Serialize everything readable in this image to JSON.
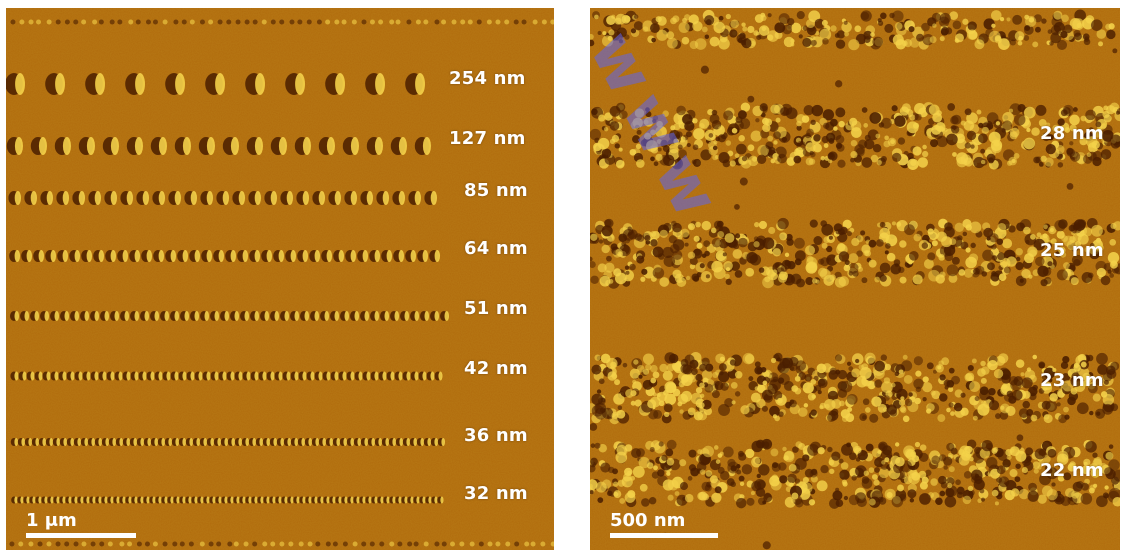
{
  "left_panel": {
    "labels": [
      "254 nm",
      "127 nm",
      "85 nm",
      "64 nm",
      "51 nm",
      "42 nm",
      "36 nm",
      "32 nm"
    ],
    "scale_bar": "1 μm"
  },
  "right_panel": {
    "labels": [
      "28 nm",
      "25 nm",
      "23 nm",
      "22 nm"
    ],
    "scale_bar": "500 nm"
  },
  "watermark": "www",
  "colors": {
    "background": "#b06a0c",
    "highlight": "#f4d24a",
    "shadow": "#4a1e00",
    "text": "#ffffff"
  }
}
